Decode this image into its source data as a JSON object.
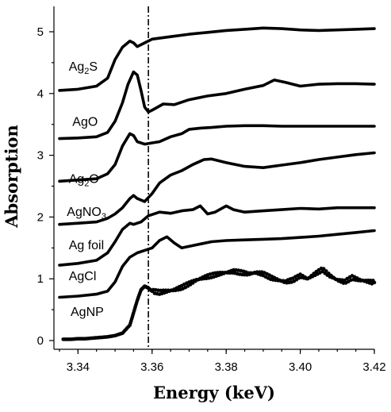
{
  "chart_data": {
    "type": "line",
    "xlabel": "Energy (keV)",
    "ylabel": "Absorption",
    "xlim": [
      3.335,
      3.42
    ],
    "ylim": [
      -0.05,
      5.3
    ],
    "x_ticks": [
      "3.34",
      "3.36",
      "3.38",
      "3.40",
      "3.42"
    ],
    "x_tick_values": [
      3.34,
      3.36,
      3.38,
      3.4,
      3.42
    ],
    "y_ticks": [
      "0",
      "1",
      "2",
      "3",
      "4",
      "5"
    ],
    "y_tick_values": [
      0,
      1,
      2,
      3,
      4,
      5
    ],
    "reference_line_x": 3.359,
    "grid": false,
    "legend": "none",
    "series": [
      {
        "name": "Ag2S",
        "label_parts": [
          {
            "t": "Ag"
          },
          {
            "t": "2",
            "sub": true
          },
          {
            "t": "S"
          }
        ],
        "label_at": [
          3.3375,
          4.37
        ],
        "style": "line",
        "points": [
          [
            3.335,
            4.05
          ],
          [
            3.34,
            4.07
          ],
          [
            3.345,
            4.12
          ],
          [
            3.348,
            4.25
          ],
          [
            3.35,
            4.55
          ],
          [
            3.352,
            4.75
          ],
          [
            3.354,
            4.85
          ],
          [
            3.355,
            4.82
          ],
          [
            3.356,
            4.76
          ],
          [
            3.358,
            4.82
          ],
          [
            3.36,
            4.88
          ],
          [
            3.365,
            4.92
          ],
          [
            3.37,
            4.96
          ],
          [
            3.375,
            4.99
          ],
          [
            3.38,
            5.02
          ],
          [
            3.385,
            5.04
          ],
          [
            3.39,
            5.06
          ],
          [
            3.395,
            5.05
          ],
          [
            3.4,
            5.03
          ],
          [
            3.405,
            5.02
          ],
          [
            3.41,
            5.03
          ],
          [
            3.415,
            5.04
          ],
          [
            3.42,
            5.05
          ]
        ]
      },
      {
        "name": "AgO",
        "label_parts": [
          {
            "t": "AgO"
          }
        ],
        "label_at": [
          3.3385,
          3.48
        ],
        "style": "line",
        "points": [
          [
            3.335,
            3.27
          ],
          [
            3.34,
            3.28
          ],
          [
            3.345,
            3.3
          ],
          [
            3.348,
            3.37
          ],
          [
            3.35,
            3.55
          ],
          [
            3.352,
            3.85
          ],
          [
            3.3535,
            4.15
          ],
          [
            3.355,
            4.35
          ],
          [
            3.356,
            4.3
          ],
          [
            3.357,
            4.05
          ],
          [
            3.358,
            3.78
          ],
          [
            3.359,
            3.7
          ],
          [
            3.36,
            3.73
          ],
          [
            3.363,
            3.83
          ],
          [
            3.366,
            3.82
          ],
          [
            3.37,
            3.9
          ],
          [
            3.375,
            3.96
          ],
          [
            3.38,
            4.0
          ],
          [
            3.385,
            4.07
          ],
          [
            3.39,
            4.13
          ],
          [
            3.393,
            4.22
          ],
          [
            3.396,
            4.18
          ],
          [
            3.4,
            4.12
          ],
          [
            3.405,
            4.15
          ],
          [
            3.41,
            4.16
          ],
          [
            3.415,
            4.16
          ],
          [
            3.42,
            4.15
          ]
        ]
      },
      {
        "name": "Ag2O",
        "label_parts": [
          {
            "t": "Ag"
          },
          {
            "t": "2",
            "sub": true
          },
          {
            "t": "O"
          }
        ],
        "label_at": [
          3.3375,
          2.55
        ],
        "style": "line",
        "points": [
          [
            3.335,
            2.58
          ],
          [
            3.34,
            2.6
          ],
          [
            3.345,
            2.62
          ],
          [
            3.348,
            2.7
          ],
          [
            3.35,
            2.85
          ],
          [
            3.352,
            3.15
          ],
          [
            3.354,
            3.35
          ],
          [
            3.355,
            3.32
          ],
          [
            3.356,
            3.22
          ],
          [
            3.358,
            3.18
          ],
          [
            3.36,
            3.2
          ],
          [
            3.362,
            3.22
          ],
          [
            3.365,
            3.3
          ],
          [
            3.368,
            3.35
          ],
          [
            3.37,
            3.42
          ],
          [
            3.373,
            3.44
          ],
          [
            3.376,
            3.45
          ],
          [
            3.38,
            3.47
          ],
          [
            3.385,
            3.48
          ],
          [
            3.39,
            3.48
          ],
          [
            3.395,
            3.47
          ],
          [
            3.4,
            3.47
          ],
          [
            3.405,
            3.47
          ],
          [
            3.41,
            3.47
          ],
          [
            3.415,
            3.47
          ],
          [
            3.42,
            3.47
          ]
        ]
      },
      {
        "name": "AgNO3",
        "label_parts": [
          {
            "t": "AgNO"
          },
          {
            "t": "3",
            "sub": true
          }
        ],
        "label_at": [
          3.337,
          2.02
        ],
        "style": "line",
        "points": [
          [
            3.335,
            1.88
          ],
          [
            3.34,
            1.9
          ],
          [
            3.345,
            1.92
          ],
          [
            3.348,
            1.98
          ],
          [
            3.35,
            2.05
          ],
          [
            3.352,
            2.15
          ],
          [
            3.354,
            2.3
          ],
          [
            3.355,
            2.35
          ],
          [
            3.356,
            2.3
          ],
          [
            3.358,
            2.25
          ],
          [
            3.36,
            2.38
          ],
          [
            3.362,
            2.55
          ],
          [
            3.365,
            2.68
          ],
          [
            3.368,
            2.75
          ],
          [
            3.371,
            2.85
          ],
          [
            3.374,
            2.93
          ],
          [
            3.376,
            2.94
          ],
          [
            3.38,
            2.88
          ],
          [
            3.385,
            2.82
          ],
          [
            3.39,
            2.8
          ],
          [
            3.395,
            2.84
          ],
          [
            3.4,
            2.88
          ],
          [
            3.405,
            2.93
          ],
          [
            3.41,
            2.97
          ],
          [
            3.415,
            3.01
          ],
          [
            3.42,
            3.04
          ]
        ]
      },
      {
        "name": "Ag foil",
        "label_parts": [
          {
            "t": "Ag foil"
          }
        ],
        "label_at": [
          3.3375,
          1.48
        ],
        "style": "line",
        "points": [
          [
            3.335,
            1.22
          ],
          [
            3.34,
            1.25
          ],
          [
            3.345,
            1.3
          ],
          [
            3.348,
            1.42
          ],
          [
            3.35,
            1.6
          ],
          [
            3.352,
            1.8
          ],
          [
            3.354,
            1.9
          ],
          [
            3.355,
            1.88
          ],
          [
            3.357,
            1.92
          ],
          [
            3.359,
            2.02
          ],
          [
            3.362,
            2.08
          ],
          [
            3.365,
            2.06
          ],
          [
            3.368,
            2.1
          ],
          [
            3.371,
            2.12
          ],
          [
            3.373,
            2.18
          ],
          [
            3.375,
            2.05
          ],
          [
            3.377,
            2.08
          ],
          [
            3.38,
            2.18
          ],
          [
            3.382,
            2.12
          ],
          [
            3.385,
            2.08
          ],
          [
            3.39,
            2.1
          ],
          [
            3.395,
            2.12
          ],
          [
            3.4,
            2.14
          ],
          [
            3.405,
            2.13
          ],
          [
            3.41,
            2.15
          ],
          [
            3.415,
            2.15
          ],
          [
            3.42,
            2.15
          ]
        ]
      },
      {
        "name": "AgCl",
        "label_parts": [
          {
            "t": "AgCl"
          }
        ],
        "label_at": [
          3.3375,
          0.98
        ],
        "style": "line",
        "points": [
          [
            3.335,
            0.7
          ],
          [
            3.34,
            0.72
          ],
          [
            3.345,
            0.75
          ],
          [
            3.348,
            0.8
          ],
          [
            3.35,
            0.95
          ],
          [
            3.352,
            1.2
          ],
          [
            3.354,
            1.35
          ],
          [
            3.356,
            1.42
          ],
          [
            3.358,
            1.46
          ],
          [
            3.36,
            1.5
          ],
          [
            3.362,
            1.62
          ],
          [
            3.364,
            1.68
          ],
          [
            3.366,
            1.58
          ],
          [
            3.368,
            1.5
          ],
          [
            3.372,
            1.55
          ],
          [
            3.376,
            1.6
          ],
          [
            3.38,
            1.62
          ],
          [
            3.385,
            1.63
          ],
          [
            3.39,
            1.64
          ],
          [
            3.395,
            1.65
          ],
          [
            3.4,
            1.67
          ],
          [
            3.405,
            1.69
          ],
          [
            3.41,
            1.72
          ],
          [
            3.415,
            1.75
          ],
          [
            3.42,
            1.78
          ]
        ]
      },
      {
        "name": "AgNP",
        "label_parts": [
          {
            "t": "AgNP"
          }
        ],
        "label_at": [
          3.338,
          0.4
        ],
        "style": "dots",
        "points": [
          [
            3.336,
            0.02
          ],
          [
            3.338,
            0.02
          ],
          [
            3.34,
            0.03
          ],
          [
            3.342,
            0.03
          ],
          [
            3.344,
            0.04
          ],
          [
            3.346,
            0.05
          ],
          [
            3.348,
            0.06
          ],
          [
            3.35,
            0.08
          ],
          [
            3.352,
            0.12
          ],
          [
            3.354,
            0.25
          ],
          [
            3.355,
            0.45
          ],
          [
            3.356,
            0.65
          ],
          [
            3.357,
            0.82
          ],
          [
            3.358,
            0.88
          ],
          [
            3.359,
            0.85
          ],
          [
            3.36,
            0.8
          ],
          [
            3.362,
            0.78
          ],
          [
            3.364,
            0.8
          ],
          [
            3.366,
            0.82
          ],
          [
            3.368,
            0.86
          ],
          [
            3.37,
            0.92
          ],
          [
            3.372,
            0.98
          ],
          [
            3.374,
            1.02
          ],
          [
            3.376,
            1.05
          ],
          [
            3.378,
            1.08
          ],
          [
            3.38,
            1.1
          ],
          [
            3.382,
            1.12
          ],
          [
            3.384,
            1.1
          ],
          [
            3.386,
            1.08
          ],
          [
            3.388,
            1.1
          ],
          [
            3.39,
            1.08
          ],
          [
            3.392,
            1.02
          ],
          [
            3.394,
            0.98
          ],
          [
            3.396,
            0.95
          ],
          [
            3.398,
            0.98
          ],
          [
            3.4,
            1.05
          ],
          [
            3.402,
            1.0
          ],
          [
            3.404,
            1.08
          ],
          [
            3.406,
            1.15
          ],
          [
            3.408,
            1.05
          ],
          [
            3.41,
            0.98
          ],
          [
            3.412,
            0.95
          ],
          [
            3.414,
            1.02
          ],
          [
            3.416,
            0.98
          ],
          [
            3.418,
            0.96
          ],
          [
            3.42,
            0.94
          ]
        ]
      }
    ]
  }
}
